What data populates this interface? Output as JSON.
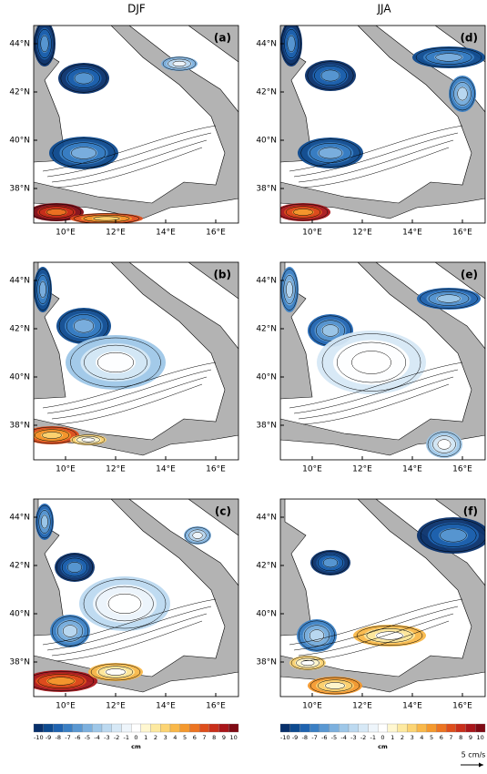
{
  "columns": [
    "DJF",
    "JJA"
  ],
  "panels": [
    {
      "label": "(a)"
    },
    {
      "label": "(d)"
    },
    {
      "label": "(b)"
    },
    {
      "label": "(e)"
    },
    {
      "label": "(c)"
    },
    {
      "label": "(f)"
    }
  ],
  "lat_labels": [
    "44°N",
    "42°N",
    "40°N",
    "38°N"
  ],
  "lon_labels": [
    "10°E",
    "12°E",
    "14°E",
    "16°E"
  ],
  "colorbar": {
    "ticks": [
      -10,
      -9,
      -8,
      -7,
      -6,
      -5,
      -4,
      -3,
      -2,
      -1,
      0,
      1,
      2,
      3,
      4,
      5,
      6,
      7,
      8,
      9,
      10
    ],
    "unit": "cm"
  },
  "scale": "5 cm/s"
}
